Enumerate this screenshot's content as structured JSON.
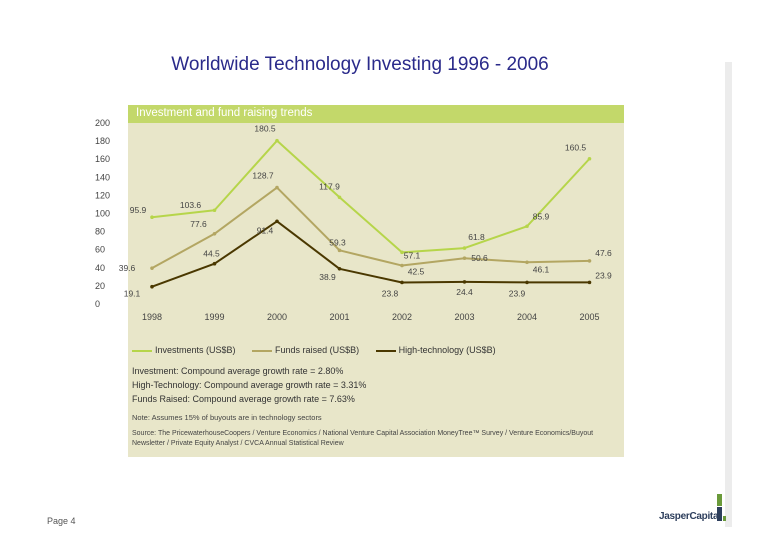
{
  "page": {
    "title": "Worldwide Technology Investing 1996 - 2006",
    "page_number": "Page 4",
    "logo_text": "JasperCapital"
  },
  "colors": {
    "panel_bg": "#e8e6c9",
    "header_bg": "#c3d86a",
    "investments": "#b6d54a",
    "funds_raised": "#b3a662",
    "high_tech": "#4a3800"
  },
  "chart_data": {
    "type": "line",
    "title": "Investment and fund raising trends",
    "categories": [
      "1998",
      "1999",
      "2000",
      "2001",
      "2002",
      "2003",
      "2004",
      "2005"
    ],
    "y_ticks": [
      "0",
      "20",
      "40",
      "60",
      "80",
      "100",
      "120",
      "140",
      "160",
      "180",
      "200"
    ],
    "ylim": [
      0,
      200
    ],
    "grid": false,
    "legend_position": "bottom",
    "series": [
      {
        "name": "Investments (US$B)",
        "color": "#b6d54a",
        "values": [
          95.9,
          103.6,
          180.5,
          117.9,
          57.1,
          61.8,
          85.9,
          160.5
        ]
      },
      {
        "name": "Funds raised (US$B)",
        "color": "#b3a662",
        "values": [
          39.6,
          77.6,
          128.7,
          59.3,
          42.5,
          50.6,
          46.1,
          47.6
        ]
      },
      {
        "name": "High-technology (US$B)",
        "color": "#4a3800",
        "values": [
          19.1,
          44.5,
          91.4,
          38.9,
          23.8,
          24.4,
          23.9,
          23.9
        ]
      }
    ]
  },
  "notes": {
    "line1": "Investment: Compound average growth rate = 2.80%",
    "line2": "High-Technology: Compound average growth rate = 3.31%",
    "line3": "Funds Raised: Compound average growth rate = 7.63%",
    "assumption": "Note: Assumes 15% of buyouts are in technology sectors",
    "source": "Source: The PricewaterhouseCoopers / Venture Economics / National Venture Capital Association MoneyTree™ Survey / Venture Economics/Buyout Newsletter / Private Equity Analyst / CVCA Annual Statistical Review"
  }
}
